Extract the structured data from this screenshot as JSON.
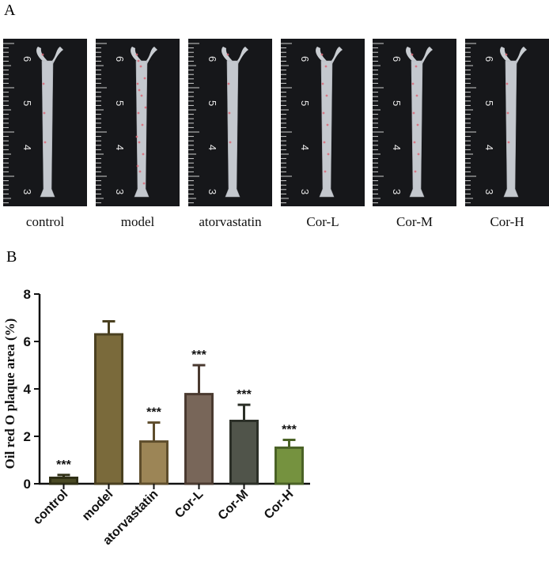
{
  "figure": {
    "panel_a_label": "A",
    "panel_b_label": "B"
  },
  "photos": [
    {
      "caption": "control",
      "plaque": "low"
    },
    {
      "caption": "model",
      "plaque": "high"
    },
    {
      "caption": "atorvastatin",
      "plaque": "low"
    },
    {
      "caption": "Cor-L",
      "plaque": "medium"
    },
    {
      "caption": "Cor-M",
      "plaque": "medium"
    },
    {
      "caption": "Cor-H",
      "plaque": "low"
    }
  ],
  "ruler_numbers": [
    "6",
    "5",
    "4",
    "3"
  ],
  "chart_data": {
    "type": "bar",
    "title": "",
    "xlabel": "",
    "ylabel": "Oil red O plaque area (%)",
    "ylim": [
      0,
      8
    ],
    "yticks": [
      "0",
      "2",
      "4",
      "6",
      "8"
    ],
    "categories": [
      "control",
      "model",
      "atorvastatin",
      "Cor-L",
      "Cor-M",
      "Cor-H"
    ],
    "values": [
      0.25,
      6.3,
      1.78,
      3.78,
      2.65,
      1.52
    ],
    "errors": [
      0.12,
      0.55,
      0.8,
      1.22,
      0.68,
      0.33
    ],
    "significance": [
      "***",
      "",
      "***",
      "***",
      "***",
      "***"
    ],
    "colors": [
      "#4a4a24",
      "#7a6a3b",
      "#9c8556",
      "#786659",
      "#50544a",
      "#75923f"
    ],
    "edge_colors": [
      "#2f2f15",
      "#4a4020",
      "#5e4d2c",
      "#4a3a30",
      "#2b2f27",
      "#4a6226"
    ],
    "grid": false
  }
}
